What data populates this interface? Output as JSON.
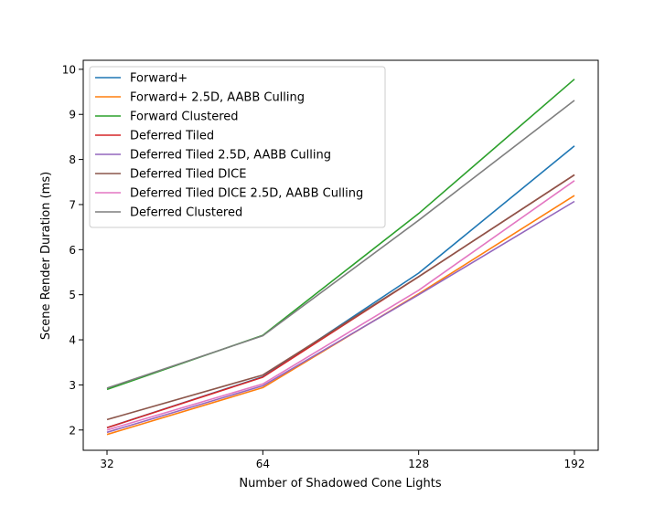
{
  "chart_data": {
    "type": "line",
    "xlabel": "Number of Shadowed Cone Lights",
    "ylabel": "Scene Render Duration (ms)",
    "x": [
      32,
      64,
      128,
      192
    ],
    "x_tick_labels": [
      "32",
      "64",
      "128",
      "192"
    ],
    "ylim": [
      1.55,
      10.2
    ],
    "y_ticks": [
      2,
      3,
      4,
      5,
      6,
      7,
      8,
      9,
      10
    ],
    "y_tick_labels": [
      "2",
      "3",
      "4",
      "5",
      "6",
      "7",
      "8",
      "9",
      "10"
    ],
    "grid": false,
    "legend_position": "top-left",
    "series": [
      {
        "name": "Forward+",
        "color": "#1f77b4",
        "values": [
          2.05,
          3.18,
          5.48,
          8.3
        ]
      },
      {
        "name": "Forward+ 2.5D, AABB Culling",
        "color": "#ff7f0e",
        "values": [
          1.9,
          2.94,
          5.02,
          7.2
        ]
      },
      {
        "name": "Forward Clustered",
        "color": "#2ca02c",
        "values": [
          2.9,
          4.1,
          6.8,
          9.78
        ]
      },
      {
        "name": "Deferred Tiled",
        "color": "#d62728",
        "values": [
          2.05,
          3.17,
          5.4,
          7.66
        ]
      },
      {
        "name": "Deferred Tiled 2.5D, AABB Culling",
        "color": "#9467bd",
        "values": [
          1.95,
          2.98,
          5.0,
          7.07
        ]
      },
      {
        "name": "Deferred Tiled DICE",
        "color": "#8c564b",
        "values": [
          2.23,
          3.22,
          5.4,
          7.66
        ]
      },
      {
        "name": "Deferred Tiled DICE 2.5D, AABB Culling",
        "color": "#e377c2",
        "values": [
          2.0,
          3.02,
          5.1,
          7.53
        ]
      },
      {
        "name": "Deferred Clustered",
        "color": "#7f7f7f",
        "values": [
          2.93,
          4.09,
          6.65,
          9.31
        ]
      }
    ]
  }
}
